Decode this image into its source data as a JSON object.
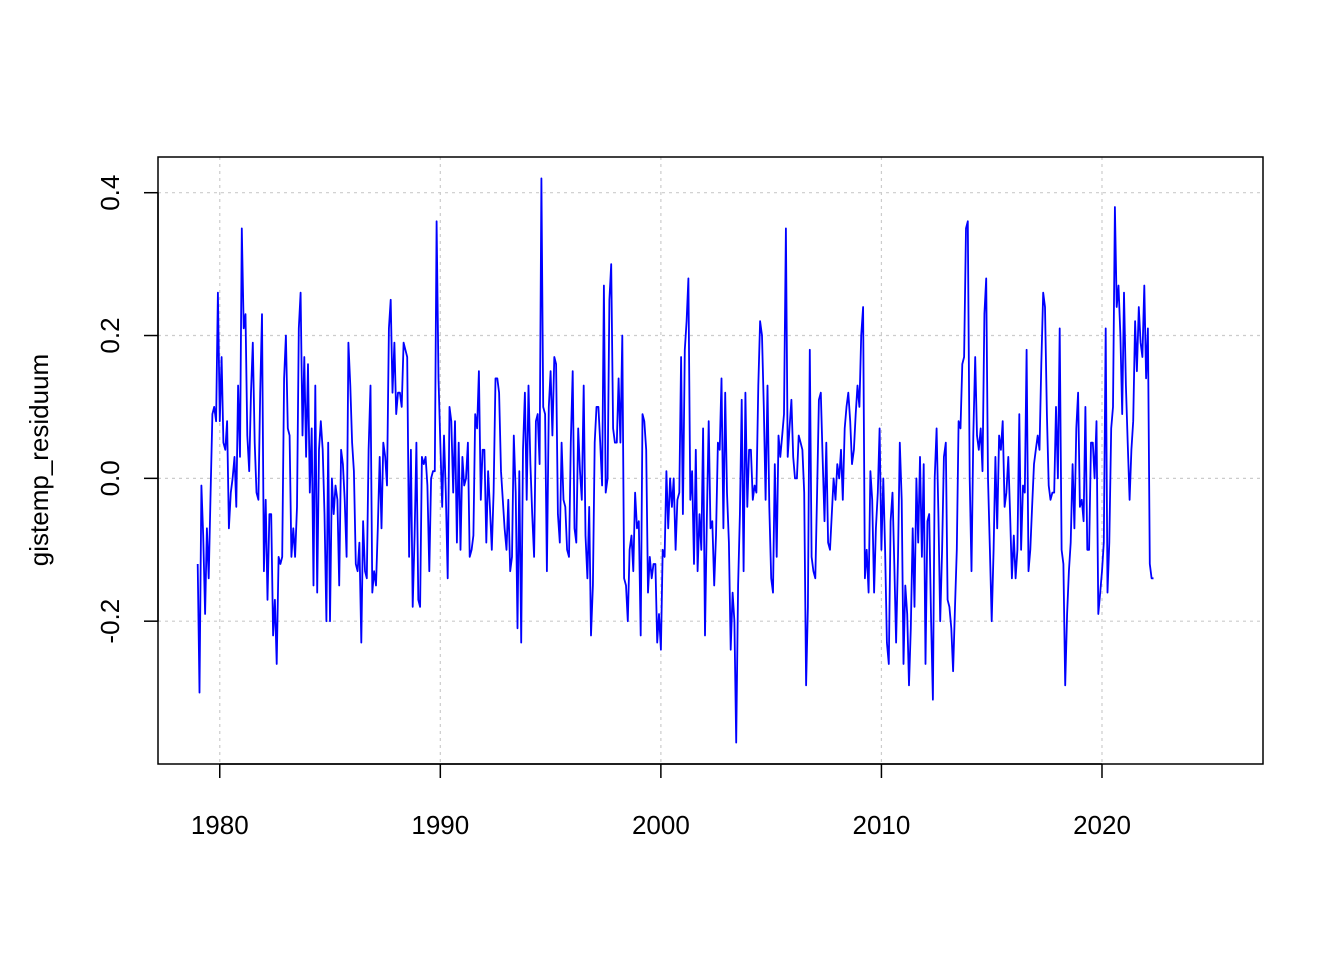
{
  "chart_data": {
    "type": "line",
    "title": "",
    "xlabel": "",
    "ylabel": "gistemp_residuum",
    "xlim": [
      1977.2,
      2027.3
    ],
    "ylim": [
      -0.4,
      0.45
    ],
    "x_ticks": [
      1980,
      1990,
      2000,
      2010,
      2020
    ],
    "y_ticks": [
      -0.2,
      0.0,
      0.2,
      0.4
    ],
    "x_tick_labels": [
      "1980",
      "1990",
      "2000",
      "2010",
      "2020"
    ],
    "y_tick_labels": [
      "-0.2",
      "0.0",
      "0.2",
      "0.4"
    ],
    "grid": true,
    "line_color": "#0000ff",
    "grid_color": "#cccccc",
    "series": [
      {
        "x_start": 1979.0,
        "x_step": 0.0833333,
        "values": [
          -0.12,
          -0.3,
          -0.01,
          -0.08,
          -0.19,
          -0.07,
          -0.14,
          -0.02,
          0.09,
          0.1,
          0.08,
          0.26,
          0.08,
          0.17,
          0.05,
          0.04,
          0.08,
          -0.07,
          -0.02,
          0.0,
          0.03,
          -0.04,
          0.13,
          0.03,
          0.35,
          0.21,
          0.23,
          0.06,
          0.01,
          0.12,
          0.19,
          0.05,
          -0.02,
          -0.03,
          0.12,
          0.23,
          -0.13,
          -0.03,
          -0.17,
          -0.05,
          -0.05,
          -0.22,
          -0.17,
          -0.26,
          -0.11,
          -0.12,
          -0.11,
          0.14,
          0.2,
          0.07,
          0.06,
          -0.11,
          -0.07,
          -0.11,
          -0.04,
          0.21,
          0.26,
          0.06,
          0.17,
          0.03,
          0.16,
          -0.02,
          0.07,
          -0.15,
          0.13,
          -0.16,
          0.04,
          0.08,
          0.04,
          -0.05,
          -0.2,
          0.05,
          -0.2,
          0.0,
          -0.05,
          -0.01,
          -0.03,
          -0.15,
          0.04,
          0.02,
          -0.03,
          -0.11,
          0.19,
          0.13,
          0.05,
          0.01,
          -0.12,
          -0.13,
          -0.09,
          -0.23,
          -0.06,
          -0.13,
          -0.14,
          0.04,
          0.13,
          -0.16,
          -0.13,
          -0.15,
          -0.07,
          0.03,
          -0.07,
          0.05,
          0.03,
          -0.01,
          0.21,
          0.25,
          0.12,
          0.19,
          0.09,
          0.12,
          0.12,
          0.1,
          0.19,
          0.18,
          0.17,
          -0.11,
          0.04,
          -0.18,
          -0.08,
          0.05,
          -0.17,
          -0.18,
          0.03,
          0.02,
          0.03,
          -0.01,
          -0.13,
          0.0,
          0.01,
          0.01,
          0.36,
          0.14,
          0.05,
          -0.04,
          0.06,
          -0.02,
          -0.14,
          0.1,
          0.08,
          -0.02,
          0.08,
          -0.09,
          0.05,
          -0.1,
          0.03,
          -0.01,
          0.0,
          0.05,
          -0.11,
          -0.1,
          -0.08,
          0.09,
          0.07,
          0.15,
          -0.03,
          0.04,
          0.04,
          -0.09,
          0.01,
          -0.04,
          -0.1,
          -0.02,
          0.14,
          0.14,
          0.12,
          0.01,
          -0.03,
          -0.07,
          -0.1,
          -0.03,
          -0.13,
          -0.11,
          0.06,
          -0.02,
          -0.21,
          0.01,
          -0.23,
          0.04,
          0.12,
          -0.03,
          0.13,
          0.02,
          -0.05,
          -0.11,
          0.08,
          0.09,
          0.02,
          0.42,
          0.1,
          0.09,
          -0.13,
          0.1,
          0.15,
          0.06,
          0.17,
          0.16,
          -0.05,
          -0.09,
          0.05,
          -0.03,
          -0.04,
          -0.1,
          -0.11,
          0.05,
          0.15,
          -0.07,
          -0.09,
          0.07,
          0.01,
          -0.03,
          0.13,
          -0.08,
          -0.14,
          -0.04,
          -0.22,
          -0.15,
          0.05,
          0.1,
          0.1,
          0.05,
          -0.01,
          0.27,
          -0.02,
          0.0,
          0.25,
          0.3,
          0.07,
          0.05,
          0.05,
          0.14,
          0.05,
          0.2,
          -0.14,
          -0.15,
          -0.2,
          -0.1,
          -0.08,
          -0.13,
          -0.02,
          -0.07,
          -0.06,
          -0.22,
          0.09,
          0.08,
          0.04,
          -0.16,
          -0.11,
          -0.14,
          -0.12,
          -0.12,
          -0.23,
          -0.19,
          -0.24,
          -0.1,
          -0.11,
          0.01,
          -0.07,
          0.0,
          -0.04,
          0.0,
          -0.1,
          -0.03,
          -0.02,
          0.17,
          -0.05,
          0.18,
          0.22,
          0.28,
          -0.03,
          0.01,
          -0.12,
          0.04,
          -0.13,
          -0.05,
          -0.1,
          0.07,
          -0.22,
          -0.06,
          0.08,
          -0.07,
          -0.06,
          -0.15,
          -0.08,
          0.05,
          0.04,
          0.14,
          -0.07,
          0.12,
          -0.02,
          -0.09,
          -0.24,
          -0.16,
          -0.2,
          -0.37,
          -0.15,
          -0.05,
          0.11,
          -0.13,
          0.12,
          -0.04,
          0.04,
          0.04,
          -0.03,
          -0.01,
          -0.02,
          0.13,
          0.22,
          0.2,
          0.1,
          -0.03,
          0.13,
          -0.04,
          -0.14,
          -0.16,
          0.02,
          -0.11,
          0.06,
          0.03,
          0.06,
          0.09,
          0.35,
          0.03,
          0.07,
          0.11,
          0.03,
          0.0,
          0.0,
          0.06,
          0.05,
          0.04,
          -0.02,
          -0.29,
          -0.18,
          0.18,
          -0.11,
          -0.13,
          -0.14,
          -0.02,
          0.11,
          0.12,
          0.03,
          -0.06,
          0.05,
          -0.09,
          -0.1,
          -0.05,
          0.0,
          -0.03,
          0.02,
          0.0,
          0.04,
          -0.03,
          0.07,
          0.1,
          0.12,
          0.08,
          0.02,
          0.04,
          0.09,
          0.13,
          0.1,
          0.2,
          0.24,
          -0.14,
          -0.1,
          -0.16,
          0.01,
          -0.03,
          -0.16,
          -0.07,
          -0.02,
          0.07,
          -0.1,
          0.0,
          -0.1,
          -0.23,
          -0.26,
          -0.06,
          -0.02,
          -0.12,
          -0.23,
          -0.11,
          0.05,
          -0.03,
          -0.26,
          -0.15,
          -0.19,
          -0.29,
          -0.21,
          -0.07,
          -0.18,
          0.0,
          -0.09,
          0.03,
          -0.11,
          0.02,
          -0.26,
          -0.06,
          -0.05,
          -0.2,
          -0.31,
          0.0,
          0.07,
          -0.05,
          -0.2,
          -0.1,
          0.03,
          0.05,
          -0.17,
          -0.18,
          -0.21,
          -0.27,
          -0.18,
          -0.1,
          0.08,
          0.07,
          0.16,
          0.17,
          0.35,
          0.36,
          0.0,
          -0.13,
          0.06,
          0.17,
          0.06,
          0.04,
          0.07,
          0.01,
          0.23,
          0.28,
          0.0,
          -0.1,
          -0.2,
          -0.1,
          0.03,
          -0.07,
          0.06,
          0.04,
          0.08,
          -0.04,
          -0.02,
          0.03,
          -0.05,
          -0.14,
          -0.08,
          -0.14,
          -0.1,
          0.09,
          -0.1,
          -0.01,
          -0.02,
          0.18,
          -0.13,
          -0.1,
          -0.04,
          0.02,
          0.04,
          0.06,
          0.04,
          0.16,
          0.26,
          0.24,
          0.09,
          -0.01,
          -0.03,
          -0.02,
          -0.02,
          0.1,
          0.0,
          0.21,
          -0.1,
          -0.12,
          -0.29,
          -0.19,
          -0.13,
          -0.09,
          0.02,
          -0.07,
          0.07,
          0.12,
          -0.04,
          -0.03,
          -0.06,
          0.1,
          -0.1,
          -0.1,
          0.05,
          0.05,
          0.0,
          0.08,
          -0.19,
          -0.16,
          -0.13,
          -0.09,
          0.21,
          -0.16,
          -0.09,
          0.07,
          0.1,
          0.38,
          0.24,
          0.27,
          0.2,
          0.09,
          0.26,
          0.13,
          0.05,
          -0.03,
          0.04,
          0.08,
          0.22,
          0.15,
          0.24,
          0.19,
          0.17,
          0.27,
          0.14,
          0.21,
          -0.12,
          -0.14,
          -0.14
        ]
      }
    ]
  }
}
